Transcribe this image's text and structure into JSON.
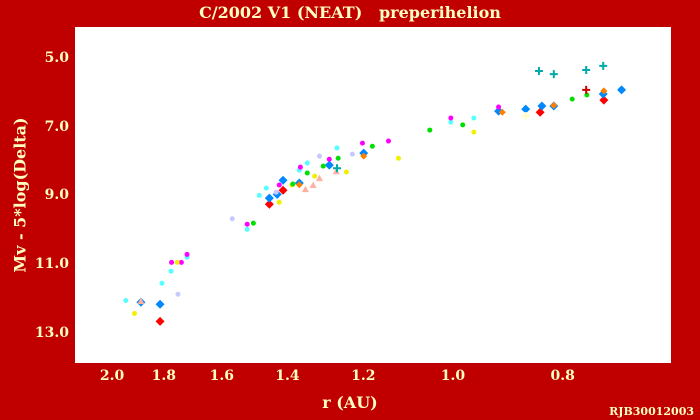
{
  "chart_data": {
    "type": "scatter",
    "title": "C/2002 V1 (NEAT)   preperihelion",
    "xlabel": "r (AU)",
    "ylabel": "Mv - 5*log(Delta)",
    "credit": "RJB30012003",
    "x_scale": "log",
    "xlim": [
      2.16,
      0.643
    ],
    "ylim": [
      4.07,
      13.85
    ],
    "x_ticks": [
      2.0,
      1.8,
      1.6,
      1.4,
      1.2,
      1.0,
      0.8
    ],
    "x_tick_labels": [
      "2.0",
      "1.8",
      "1.6",
      "1.4",
      "1.2",
      "1.0",
      "0.8"
    ],
    "y_ticks": [
      5,
      7,
      9,
      11,
      13
    ],
    "y_tick_labels": [
      "5.0",
      "7.0",
      "9.0",
      "11.0",
      "13.0"
    ],
    "grid": false,
    "series": [
      {
        "name": "red",
        "color": "#ff0000",
        "marker": "diamond",
        "points": [
          [
            1.817,
            12.64
          ],
          [
            1.455,
            9.23
          ],
          [
            1.415,
            8.82
          ],
          [
            0.839,
            6.55
          ],
          [
            0.737,
            6.2
          ]
        ]
      },
      {
        "name": "blue",
        "color": "#0088ff",
        "marker": "diamond",
        "points": [
          [
            1.817,
            12.14
          ],
          [
            1.889,
            12.08
          ],
          [
            1.455,
            9.05
          ],
          [
            1.432,
            8.94
          ],
          [
            1.415,
            8.53
          ],
          [
            1.369,
            8.61
          ],
          [
            1.288,
            8.09
          ],
          [
            1.201,
            7.74
          ],
          [
            0.913,
            6.52
          ],
          [
            0.864,
            6.46
          ],
          [
            0.836,
            6.37
          ],
          [
            0.816,
            6.37
          ],
          [
            0.738,
            6.02
          ],
          [
            0.711,
            5.9
          ]
        ]
      },
      {
        "name": "orange",
        "color": "#ff8000",
        "marker": "small-diamond",
        "points": [
          [
            1.201,
            7.83
          ],
          [
            0.906,
            6.55
          ],
          [
            0.816,
            6.35
          ],
          [
            0.737,
            5.93
          ],
          [
            1.369,
            8.66
          ]
        ]
      },
      {
        "name": "cyan",
        "color": "#55ffff",
        "marker": "dot",
        "points": [
          [
            1.948,
            12.03
          ],
          [
            1.81,
            11.53
          ],
          [
            1.777,
            11.18
          ],
          [
            1.72,
            10.77
          ],
          [
            1.522,
            9.96
          ],
          [
            1.485,
            8.97
          ],
          [
            1.464,
            8.76
          ],
          [
            1.369,
            8.24
          ],
          [
            1.347,
            8.03
          ],
          [
            1.268,
            7.59
          ],
          [
            1.006,
            6.84
          ],
          [
            0.96,
            6.72
          ]
        ]
      },
      {
        "name": "magenta",
        "color": "#ff00ff",
        "marker": "dot",
        "points": [
          [
            1.775,
            10.92
          ],
          [
            1.74,
            10.92
          ],
          [
            1.72,
            10.69
          ],
          [
            1.522,
            9.81
          ],
          [
            1.426,
            8.67
          ],
          [
            1.366,
            8.15
          ],
          [
            1.288,
            7.92
          ],
          [
            1.204,
            7.45
          ],
          [
            1.142,
            7.39
          ],
          [
            1.006,
            6.72
          ],
          [
            0.913,
            6.4
          ]
        ]
      },
      {
        "name": "yellow",
        "color": "#f0f000",
        "marker": "dot",
        "points": [
          [
            1.914,
            12.41
          ],
          [
            1.755,
            10.92
          ],
          [
            1.426,
            9.17
          ],
          [
            1.39,
            8.67
          ],
          [
            1.327,
            8.41
          ],
          [
            1.244,
            8.29
          ],
          [
            1.119,
            7.89
          ],
          [
            0.96,
            7.13
          ]
        ]
      },
      {
        "name": "green",
        "color": "#00e000",
        "marker": "dot",
        "points": [
          [
            1.503,
            9.78
          ],
          [
            1.387,
            8.64
          ],
          [
            1.347,
            8.32
          ],
          [
            1.304,
            8.12
          ],
          [
            1.265,
            7.89
          ],
          [
            1.18,
            7.54
          ],
          [
            1.05,
            7.07
          ],
          [
            0.982,
            6.92
          ],
          [
            0.786,
            6.17
          ],
          [
            0.763,
            6.05
          ]
        ]
      },
      {
        "name": "lavender",
        "color": "#c8c8ff",
        "marker": "dot",
        "points": [
          [
            1.752,
            11.85
          ],
          [
            1.569,
            9.65
          ],
          [
            1.435,
            8.88
          ],
          [
            1.314,
            7.83
          ],
          [
            1.229,
            7.77
          ]
        ]
      },
      {
        "name": "salmon",
        "color": "#ffb0a0",
        "marker": "triangle",
        "points": [
          [
            1.352,
            8.79
          ],
          [
            1.331,
            8.67
          ],
          [
            1.314,
            8.47
          ],
          [
            1.27,
            8.27
          ],
          [
            1.889,
            12.05
          ]
        ]
      },
      {
        "name": "teal",
        "color": "#00aaaa",
        "marker": "plus",
        "points": [
          [
            1.268,
            8.18
          ],
          [
            0.841,
            5.35
          ],
          [
            0.816,
            5.44
          ],
          [
            0.764,
            5.32
          ],
          [
            0.738,
            5.2
          ]
        ]
      },
      {
        "name": "dark-red",
        "color": "#cc0000",
        "marker": "plus",
        "points": [
          [
            0.764,
            5.9
          ]
        ]
      },
      {
        "name": "pale-yellow",
        "color": "#ffffc0",
        "marker": "plus",
        "points": [
          [
            0.864,
            6.66
          ]
        ]
      }
    ]
  }
}
